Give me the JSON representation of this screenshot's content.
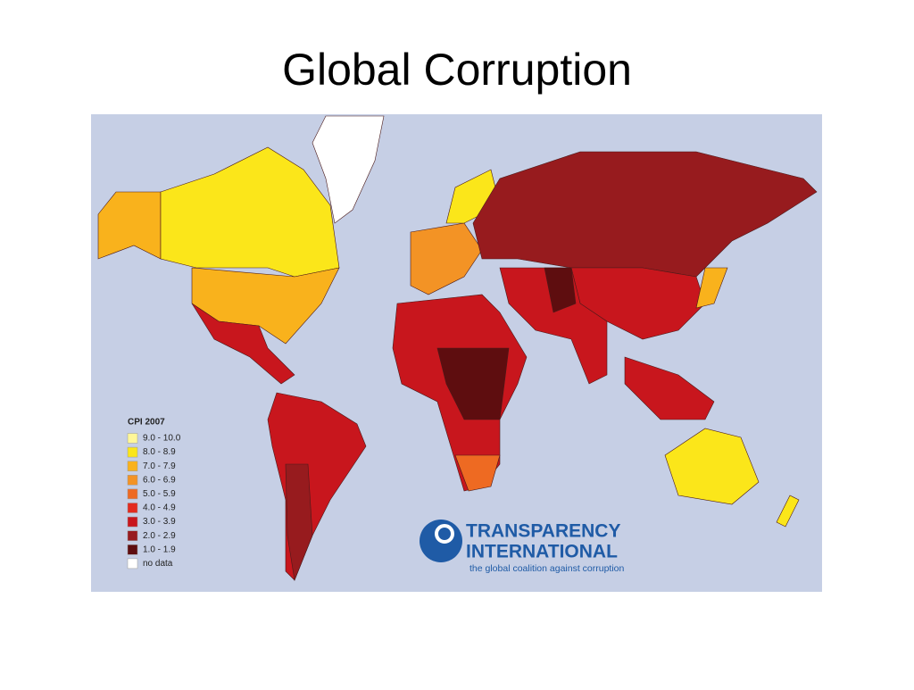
{
  "title": "Global Corruption",
  "legend": {
    "title": "CPI 2007",
    "items": [
      {
        "label": "9.0 - 10.0",
        "color": "#fff799"
      },
      {
        "label": "8.0 - 8.9",
        "color": "#fbe61a"
      },
      {
        "label": "7.0 - 7.9",
        "color": "#f9b21c"
      },
      {
        "label": "6.0 - 6.9",
        "color": "#f39325"
      },
      {
        "label": "5.0 - 5.9",
        "color": "#ee6a22"
      },
      {
        "label": "4.0 - 4.9",
        "color": "#e32b1f"
      },
      {
        "label": "3.0 - 3.9",
        "color": "#c8161d"
      },
      {
        "label": "2.0 - 2.9",
        "color": "#971b1e"
      },
      {
        "label": "1.0 - 1.9",
        "color": "#5e0d0f"
      },
      {
        "label": "no data",
        "color": "#ffffff"
      }
    ]
  },
  "logo": {
    "line1": "TRANSPARENCY",
    "line2": "INTERNATIONAL",
    "tagline": "the global coalition against corruption"
  }
}
